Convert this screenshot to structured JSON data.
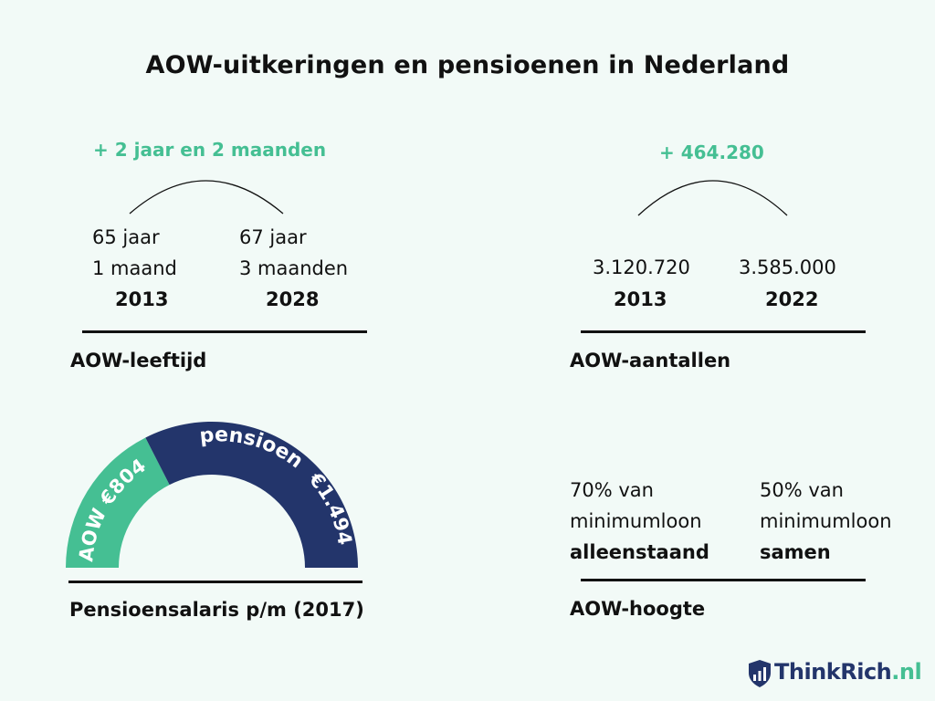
{
  "title": "AOW-uitkeringen  en pensioenen in Nederland",
  "age": {
    "increase": "+ 2 jaar en 2 maanden",
    "left": {
      "line1": "65 jaar",
      "line2": "1 maand",
      "year": "2013"
    },
    "right": {
      "line1": "67 jaar",
      "line2": "3 maanden",
      "year": "2028"
    },
    "label": "AOW-leeftijd"
  },
  "counts": {
    "increase": "+ 464.280",
    "left": {
      "value": "3.120.720",
      "year": "2013"
    },
    "right": {
      "value": "3.585.000",
      "year": "2022"
    },
    "label": "AOW-aantallen"
  },
  "salary": {
    "aow_label": "AOW €804",
    "pension_label": "pensioen",
    "pension_value": "€1.494",
    "aow_value": 804,
    "pension_amount": 1494,
    "aow_color": "#45BF93",
    "pension_color": "#23356B",
    "label": "Pensioensalaris p/m (2017)"
  },
  "height": {
    "left": {
      "line1": "70% van",
      "line2": "minimumloon",
      "line3": "alleenstaand"
    },
    "right": {
      "line1": "50% van",
      "line2": "minimumloon",
      "line3": "samen"
    },
    "label": "AOW-hoogte"
  },
  "logo": {
    "main": "ThinkRich",
    "tld": ".nl",
    "icon": "shield-chart-icon"
  }
}
